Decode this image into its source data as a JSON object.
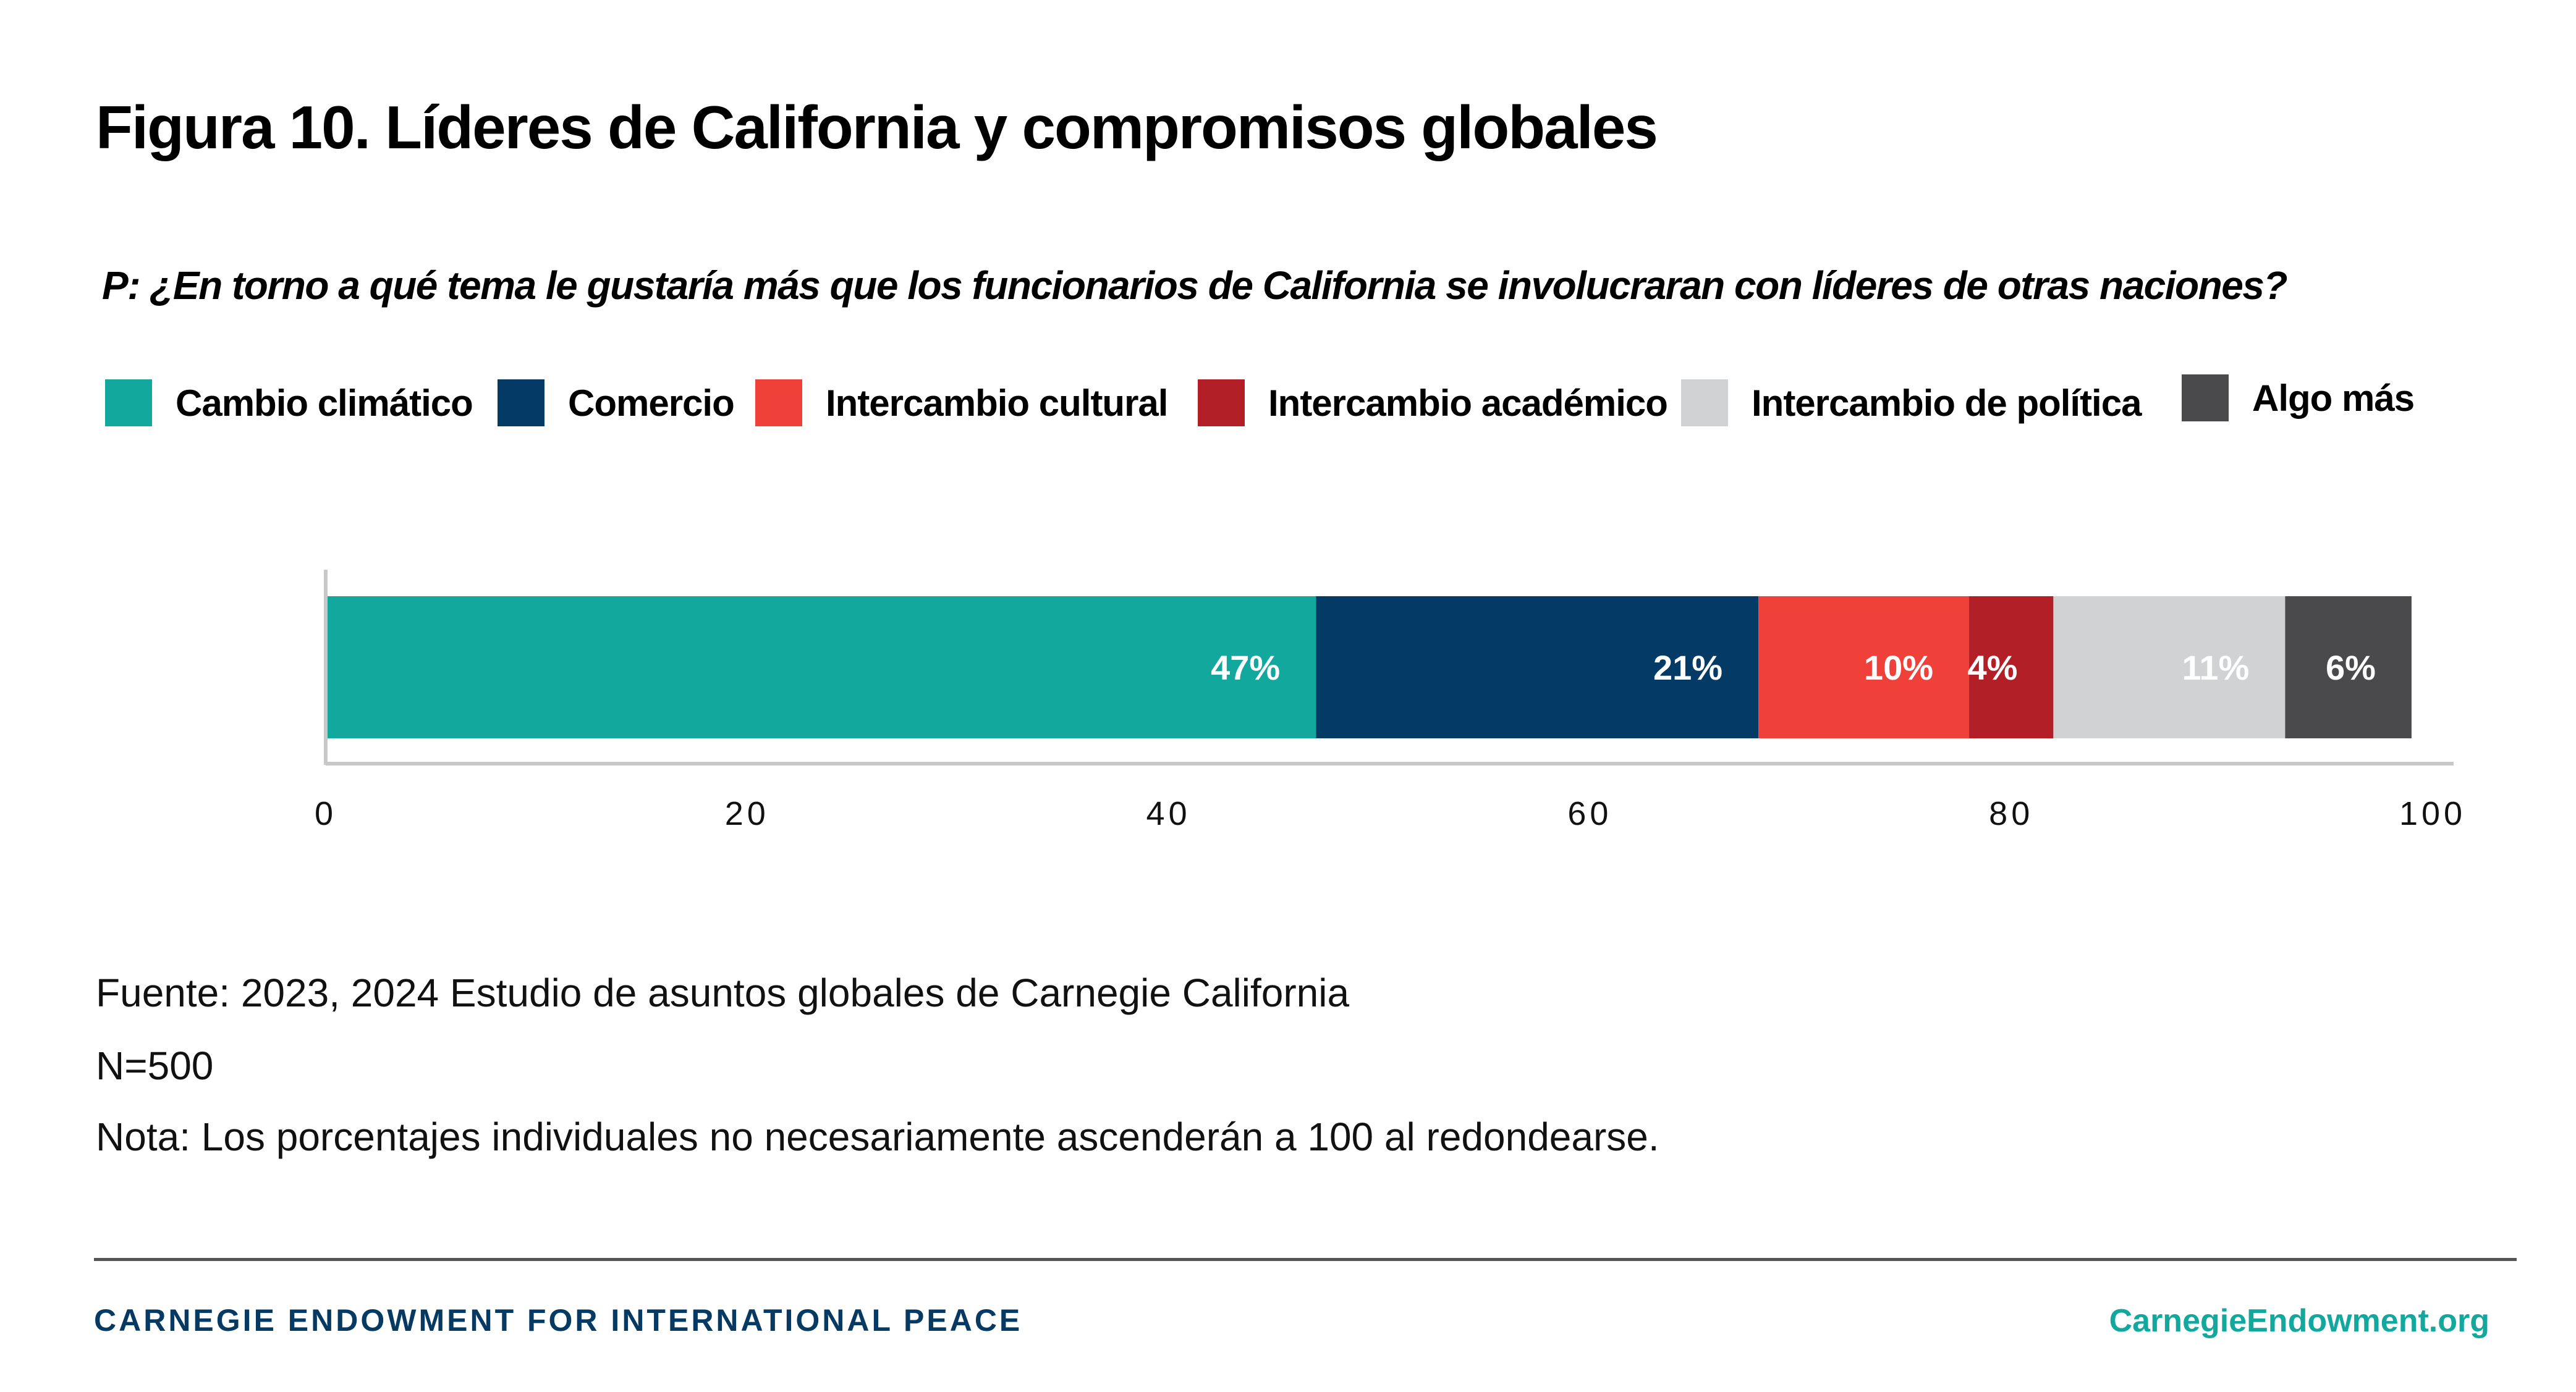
{
  "title": "Figura 10. Líderes de California y compromisos globales",
  "question": "P: ¿En torno a qué tema le gustaría más que los funcionarios de California se involucraran con líderes de otras naciones?",
  "legend": [
    {
      "label": "Cambio climático",
      "color": "#13a89e"
    },
    {
      "label": "Comercio",
      "color": "#033a66"
    },
    {
      "label": "Intercambio cultural",
      "color": "#ef4039"
    },
    {
      "label": "Intercambio académico",
      "color": "#b31f26"
    },
    {
      "label": "Intercambio de política",
      "color": "#d1d2d4"
    },
    {
      "label": "Algo más",
      "color": "#4a4a4c"
    }
  ],
  "chart_data": {
    "type": "bar",
    "orientation": "horizontal",
    "stacked": true,
    "title": "Figura 10. Líderes de California y compromisos globales",
    "subtitle": "P: ¿En torno a qué tema le gustaría más que los funcionarios de California se involucraran con líderes de otras naciones?",
    "categories": [
      ""
    ],
    "series": [
      {
        "name": "Cambio climático",
        "values": [
          47
        ],
        "label": "47%",
        "color": "#13a89e",
        "label_color": "#ffffff"
      },
      {
        "name": "Comercio",
        "values": [
          21
        ],
        "label": "21%",
        "color": "#033a66",
        "label_color": "#ffffff"
      },
      {
        "name": "Intercambio cultural",
        "values": [
          10
        ],
        "label": "10%",
        "color": "#ef4039",
        "label_color": "#ffffff"
      },
      {
        "name": "Intercambio académico",
        "values": [
          4
        ],
        "label": "4%",
        "color": "#b31f26",
        "label_color": "#ffffff"
      },
      {
        "name": "Intercambio de política",
        "values": [
          11
        ],
        "label": "11%",
        "color": "#d1d2d4",
        "label_color": "#ffffff"
      },
      {
        "name": "Algo más",
        "values": [
          6
        ],
        "label": "6%",
        "color": "#4a4a4c",
        "label_color": "#ffffff"
      }
    ],
    "xlabel": "",
    "ylabel": "",
    "xlim": [
      0,
      100
    ],
    "xticks": [
      0,
      20,
      40,
      60,
      80,
      100
    ],
    "grid": false,
    "legend_position": "top"
  },
  "source": [
    "Fuente: 2023, 2024 Estudio de asuntos globales de Carnegie California",
    "N=500",
    "Nota: Los porcentajes individuales no necesariamente ascenderán a 100 al redondearse."
  ],
  "footer": {
    "org": "CARNEGIE ENDOWMENT FOR INTERNATIONAL PEACE",
    "url": "CarnegieEndowment.org"
  }
}
